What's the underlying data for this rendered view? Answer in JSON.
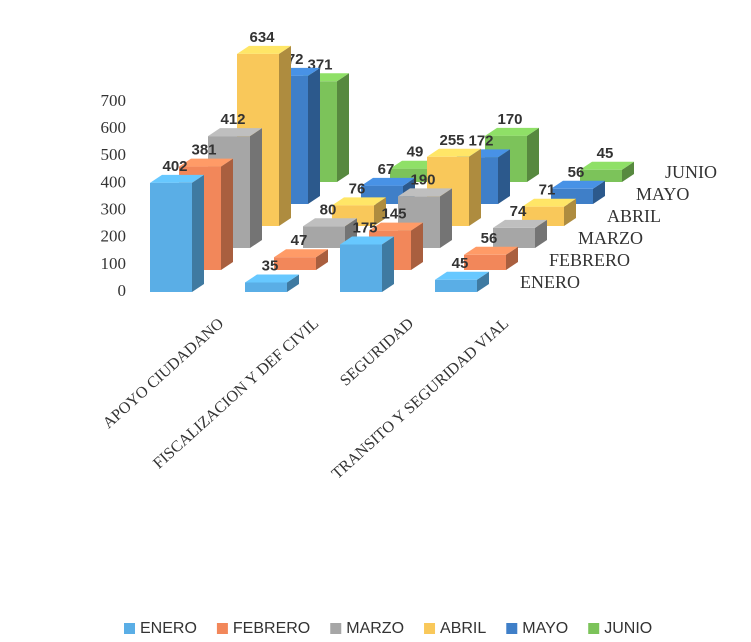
{
  "chart_data": {
    "type": "bar3d",
    "categories": [
      "APOYO CIUDADANO",
      "FISCALIZACION Y DEF CIVIL",
      "SEGURIDAD",
      "TRANSITO Y SEGURIDAD VIAL"
    ],
    "series": [
      {
        "name": "ENERO",
        "color": "#5aaee6",
        "values": [
          402,
          35,
          175,
          45
        ]
      },
      {
        "name": "FEBRERO",
        "color": "#f2875a",
        "values": [
          381,
          47,
          145,
          56
        ]
      },
      {
        "name": "MARZO",
        "color": "#a6a6a6",
        "values": [
          412,
          80,
          190,
          74
        ]
      },
      {
        "name": "ABRIL",
        "color": "#f9c85a",
        "values": [
          634,
          76,
          255,
          71
        ]
      },
      {
        "name": "MAYO",
        "color": "#3f7fc8",
        "values": [
          472,
          67,
          172,
          56
        ]
      },
      {
        "name": "JUNIO",
        "color": "#7cc35a",
        "values": [
          371,
          49,
          170,
          45
        ]
      }
    ],
    "ylim": [
      0,
      700
    ],
    "yticks": [
      0,
      100,
      200,
      300,
      400,
      500,
      600,
      700
    ]
  }
}
